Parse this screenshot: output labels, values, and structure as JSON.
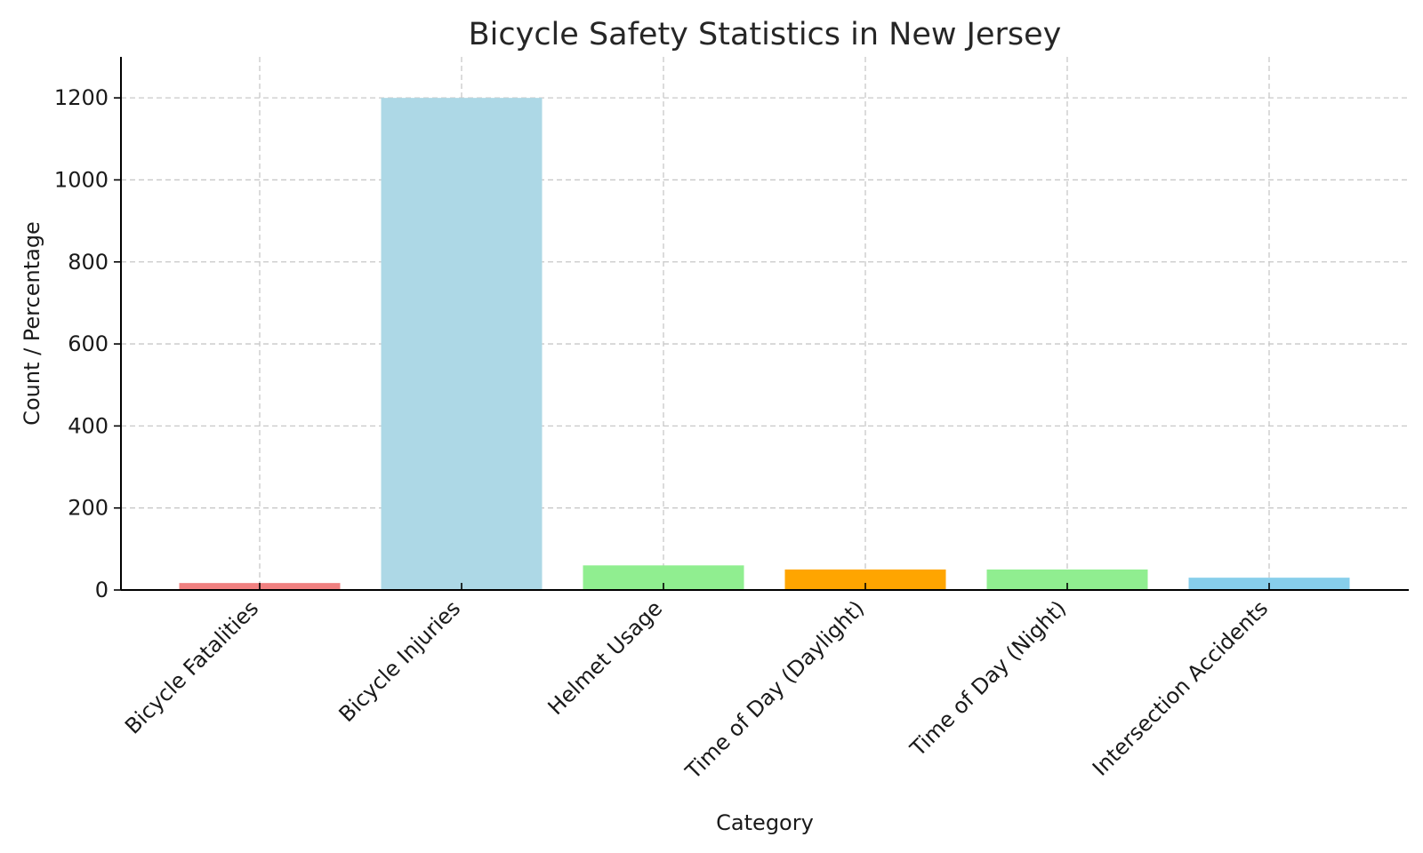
{
  "chart_data": {
    "type": "bar",
    "title": "Bicycle Safety Statistics in New Jersey",
    "xlabel": "Category",
    "ylabel": "Count / Percentage",
    "categories": [
      "Bicycle Fatalities",
      "Bicycle Injuries",
      "Helmet Usage",
      "Time of Day (Daylight)",
      "Time of Day (Night)",
      "Intersection Accidents"
    ],
    "values": [
      17,
      1200,
      60,
      50,
      50,
      30
    ],
    "colors": [
      "#f08080",
      "#add8e6",
      "#90ee90",
      "#ffa500",
      "#90ee90",
      "#87ceeb"
    ],
    "ylim": [
      0,
      1300
    ],
    "yticks": [
      0,
      200,
      400,
      600,
      800,
      1000,
      1200
    ],
    "grid": true,
    "legend": "none"
  }
}
